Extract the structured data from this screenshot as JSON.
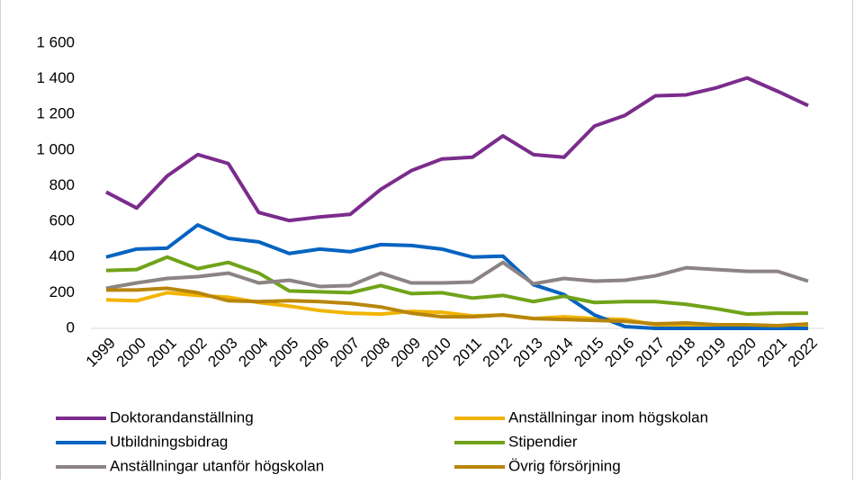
{
  "chart_data": {
    "type": "line",
    "categories": [
      "1999",
      "2000",
      "2001",
      "2002",
      "2003",
      "2004",
      "2005",
      "2006",
      "2007",
      "2008",
      "2009",
      "2010",
      "2011",
      "2012",
      "2013",
      "2014",
      "2015",
      "2016",
      "2017",
      "2018",
      "2019",
      "2020",
      "2021",
      "2022"
    ],
    "series": [
      {
        "name": "Doktorandanställning",
        "color": "#7b2c8c",
        "values": [
          765,
          675,
          855,
          975,
          925,
          650,
          605,
          625,
          640,
          780,
          885,
          950,
          960,
          1080,
          975,
          960,
          1135,
          1195,
          1305,
          1310,
          1350,
          1405,
          1330,
          1250
        ]
      },
      {
        "name": "Anställningar inom högskolan",
        "color": "#f2b400",
        "values": [
          160,
          155,
          200,
          185,
          175,
          145,
          125,
          100,
          85,
          80,
          95,
          90,
          70,
          75,
          55,
          65,
          55,
          50,
          20,
          10,
          5,
          5,
          10,
          15
        ]
      },
      {
        "name": "Utbildningsbidrag",
        "color": "#0563c1",
        "values": [
          400,
          445,
          450,
          580,
          505,
          485,
          420,
          445,
          430,
          470,
          465,
          445,
          400,
          405,
          245,
          190,
          75,
          10,
          0,
          0,
          0,
          0,
          0,
          0
        ]
      },
      {
        "name": "Stipendier",
        "color": "#70a319",
        "values": [
          325,
          330,
          400,
          335,
          370,
          310,
          210,
          205,
          200,
          240,
          195,
          200,
          170,
          185,
          150,
          180,
          145,
          150,
          150,
          135,
          110,
          80,
          85,
          85
        ]
      },
      {
        "name": "Anställningar utanför högskolan",
        "color": "#8c8384",
        "values": [
          225,
          255,
          280,
          290,
          310,
          255,
          270,
          235,
          240,
          310,
          255,
          255,
          260,
          370,
          250,
          280,
          265,
          270,
          295,
          340,
          330,
          320,
          320,
          265
        ]
      },
      {
        "name": "Övrig försörjning",
        "color": "#b8860b",
        "values": [
          215,
          215,
          225,
          200,
          155,
          150,
          155,
          150,
          140,
          120,
          85,
          65,
          65,
          75,
          55,
          50,
          45,
          40,
          25,
          30,
          20,
          20,
          15,
          25
        ]
      }
    ],
    "ylim": [
      0,
      1600
    ],
    "yticks": [
      0,
      200,
      400,
      600,
      800,
      {
        "value": 1000,
        "label": "1 000"
      },
      {
        "value": 1200,
        "label": "1 200"
      },
      {
        "value": 1400,
        "label": "1 400"
      },
      {
        "value": 1600,
        "label": "1 600"
      }
    ],
    "grid": false
  }
}
